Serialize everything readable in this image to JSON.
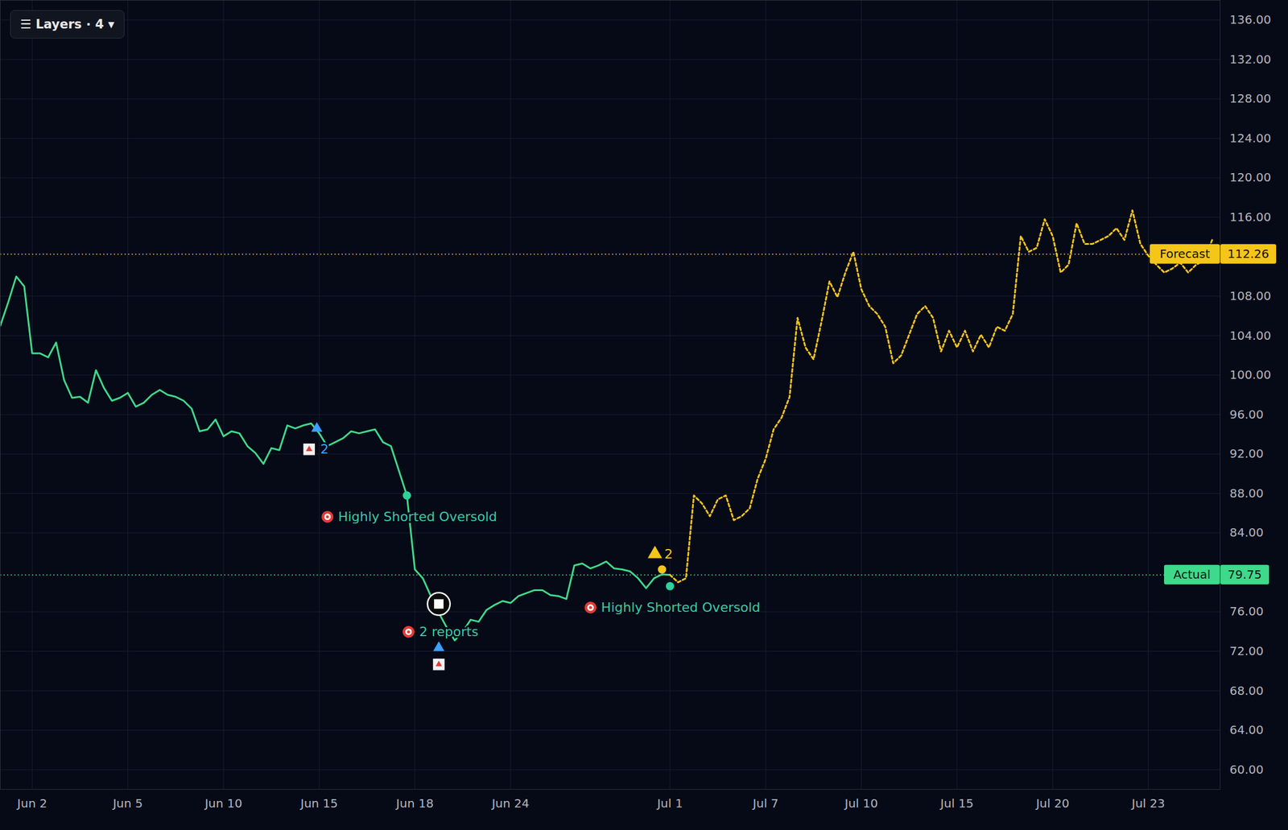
{
  "chart_data": {
    "type": "line",
    "toolbar": "☰ Layers · 4 ▾",
    "categories": [
      null,
      null,
      null,
      null,
      "Jun 2",
      null,
      null,
      null,
      null,
      null,
      null,
      null,
      null,
      null,
      null,
      null,
      "Jun 5",
      null,
      null,
      null,
      null,
      null,
      null,
      null,
      null,
      null,
      null,
      null,
      "Jun 10",
      null,
      null,
      null,
      null,
      null,
      null,
      null,
      null,
      null,
      null,
      null,
      "Jun 15",
      null,
      null,
      null,
      null,
      null,
      null,
      null,
      null,
      null,
      null,
      null,
      "Jun 18",
      null,
      null,
      null,
      null,
      null,
      null,
      null,
      null,
      null,
      null,
      null,
      "Jun 24",
      null,
      null,
      null,
      null,
      null,
      null,
      null,
      null,
      null,
      null,
      null,
      null,
      null,
      null,
      null,
      null,
      null,
      null,
      null,
      "Jul 1",
      null,
      null,
      null,
      null,
      null,
      null,
      null,
      null,
      null,
      null,
      null,
      "Jul 7",
      null,
      null,
      null,
      null,
      null,
      null,
      null,
      null,
      null,
      null,
      null,
      "Jul 10",
      null,
      null,
      null,
      null,
      null,
      null,
      null,
      null,
      null,
      null,
      null,
      "Jul 15",
      null,
      null,
      null,
      null,
      null,
      null,
      null,
      null,
      null,
      null,
      null,
      "Jul 20",
      null,
      null,
      null,
      null,
      null,
      null,
      null,
      null,
      null,
      null,
      null,
      "Jul 23",
      null,
      null,
      null,
      null,
      null,
      null,
      null,
      null,
      null
    ],
    "series": [
      {
        "name": "Actual",
        "color": "#3fd98a",
        "line_style": "solid",
        "values": [
          105,
          107.4,
          110,
          109,
          102.2,
          102.2,
          101.8,
          103.3,
          99.5,
          97.7,
          97.8,
          97.2,
          100.5,
          98.7,
          97.4,
          97.7,
          98.2,
          96.8,
          97.2,
          98,
          98.5,
          98,
          97.8,
          97.4,
          96.6,
          94.3,
          94.5,
          95.5,
          93.8,
          94.3,
          94.1,
          92.8,
          92.1,
          91,
          92.6,
          92.4,
          94.9,
          94.6,
          94.9,
          95.1,
          94.1,
          92.8,
          93.2,
          93.6,
          94.3,
          94.1,
          94.3,
          94.5,
          93.2,
          92.8,
          90.3,
          87.8,
          80.3,
          79.4,
          77.6,
          75.9,
          74.4,
          73.1,
          74,
          75.2,
          75,
          76.2,
          76.7,
          77.1,
          76.9,
          77.6,
          77.9,
          78.2,
          78.2,
          77.7,
          77.6,
          77.3,
          80.7,
          80.9,
          80.4,
          80.7,
          81.1,
          80.4,
          80.3,
          80.1,
          79.4,
          78.4,
          79.4,
          79.8,
          79.75,
          null,
          null,
          null,
          null,
          null,
          null,
          null,
          null,
          null,
          null,
          null,
          null,
          null,
          null,
          null,
          null,
          null,
          null,
          null,
          null,
          null,
          null,
          null,
          null,
          null,
          null,
          null,
          null,
          null,
          null,
          null,
          null,
          null,
          null,
          null,
          null,
          null,
          null,
          null,
          null,
          null,
          null,
          null,
          null,
          null,
          null,
          null,
          null,
          null,
          null,
          null,
          null,
          null,
          null,
          null,
          null,
          null,
          null,
          null,
          null,
          null,
          null,
          null,
          null,
          null,
          null,
          null,
          null,
          null
        ]
      },
      {
        "name": "Forecast",
        "color": "#f5c518",
        "line_style": "dotted",
        "values": [
          null,
          null,
          null,
          null,
          null,
          null,
          null,
          null,
          null,
          null,
          null,
          null,
          null,
          null,
          null,
          null,
          null,
          null,
          null,
          null,
          null,
          null,
          null,
          null,
          null,
          null,
          null,
          null,
          null,
          null,
          null,
          null,
          null,
          null,
          null,
          null,
          null,
          null,
          null,
          null,
          null,
          null,
          null,
          null,
          null,
          null,
          null,
          null,
          null,
          null,
          null,
          null,
          null,
          null,
          null,
          null,
          null,
          null,
          null,
          null,
          null,
          null,
          null,
          null,
          null,
          null,
          null,
          null,
          null,
          null,
          null,
          null,
          null,
          null,
          null,
          null,
          null,
          null,
          null,
          null,
          null,
          null,
          null,
          null,
          79.75,
          79,
          79.4,
          87.8,
          87,
          85.7,
          87.4,
          87.8,
          85.3,
          85.7,
          86.5,
          89.5,
          91.5,
          94.5,
          95.7,
          97.8,
          105.8,
          102.8,
          101.6,
          105.4,
          109.5,
          107.9,
          110.4,
          112.5,
          108.7,
          107,
          106.2,
          104.9,
          101.2,
          102,
          104.1,
          106.2,
          107,
          105.8,
          102.4,
          104.5,
          102.8,
          104.5,
          102.4,
          104.1,
          102.8,
          104.9,
          104.5,
          106.2,
          114.1,
          112.5,
          112.9,
          115.8,
          114.1,
          110.4,
          111.2,
          115.4,
          113.3,
          113.3,
          113.7,
          114.1,
          114.9,
          113.7,
          116.7,
          113.3,
          112.1,
          111.2,
          110.4,
          110.8,
          111.4,
          110.4,
          111.2,
          111.6,
          113.7,
          null
        ]
      }
    ],
    "reference_lines": [
      {
        "name": "Forecast",
        "value": 112.26,
        "color": "#f5c518"
      },
      {
        "name": "Actual",
        "value": 79.75,
        "color": "#3fd98a"
      }
    ],
    "annotations": [
      {
        "text": "Highly Shorted Oversold",
        "x": 51,
        "y": 87.8,
        "marker": "signal"
      },
      {
        "text": "Highly Shorted Oversold",
        "x": 84,
        "y": 78.6,
        "marker": "signal"
      },
      {
        "text": "2 reports",
        "x": 55,
        "y": 76.8,
        "marker": "logo"
      },
      {
        "text": "2",
        "x": 40,
        "y": 94.1,
        "marker": "chart"
      },
      {
        "text": "2",
        "x": 83,
        "y": 80.3,
        "marker": "bell"
      }
    ],
    "ylim": [
      58,
      138
    ],
    "yticks": [
      {
        "value": 60,
        "label": "60.00"
      },
      {
        "value": 64,
        "label": "64.00"
      },
      {
        "value": 68,
        "label": "68.00"
      },
      {
        "value": 72,
        "label": "72.00"
      },
      {
        "value": 76,
        "label": "76.00"
      },
      {
        "value": 84,
        "label": "84.00"
      },
      {
        "value": 88,
        "label": "88.00"
      },
      {
        "value": 92,
        "label": "92.00"
      },
      {
        "value": 96,
        "label": "96.00"
      },
      {
        "value": 100,
        "label": "100.00"
      },
      {
        "value": 104,
        "label": "104.00"
      },
      {
        "value": 108,
        "label": "108.00"
      },
      {
        "value": 116,
        "label": "116.00"
      },
      {
        "value": 120,
        "label": "120.00"
      },
      {
        "value": 124,
        "label": "124.00"
      },
      {
        "value": 128,
        "label": "128.00"
      },
      {
        "value": 132,
        "label": "132.00"
      },
      {
        "value": 136,
        "label": "136.00"
      }
    ],
    "grid": true
  }
}
